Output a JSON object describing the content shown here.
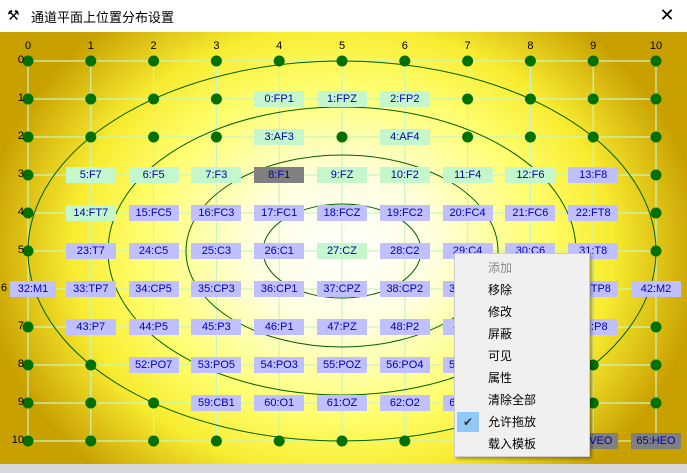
{
  "window": {
    "title": "通道平面上位置分布设置",
    "icon": "hammer-icon",
    "close": "✕"
  },
  "grid": {
    "cols": [
      "0",
      "1",
      "2",
      "3",
      "4",
      "5",
      "6",
      "7",
      "8",
      "9",
      "10"
    ],
    "rows": [
      "0",
      "1",
      "2",
      "3",
      "4",
      "5",
      "6",
      "7",
      "8",
      "9",
      "10"
    ]
  },
  "colors": {
    "green": "#c4f7cc",
    "blue": "#c0c0ff",
    "gray": "#808080",
    "dot": "#007000",
    "line": "#c8f5c0"
  },
  "electrodes": [
    {
      "c": 4,
      "r": 1,
      "t": "0:FP1",
      "k": "green"
    },
    {
      "c": 5,
      "r": 1,
      "t": "1:FPZ",
      "k": "green"
    },
    {
      "c": 6,
      "r": 1,
      "t": "2:FP2",
      "k": "green"
    },
    {
      "c": 4,
      "r": 2,
      "t": "3:AF3",
      "k": "green"
    },
    {
      "c": 6,
      "r": 2,
      "t": "4:AF4",
      "k": "green"
    },
    {
      "c": 1,
      "r": 3,
      "t": "5:F7",
      "k": "green"
    },
    {
      "c": 2,
      "r": 3,
      "t": "6:F5",
      "k": "green"
    },
    {
      "c": 3,
      "r": 3,
      "t": "7:F3",
      "k": "green"
    },
    {
      "c": 4,
      "r": 3,
      "t": "8:F1",
      "k": "gray"
    },
    {
      "c": 5,
      "r": 3,
      "t": "9:FZ",
      "k": "green"
    },
    {
      "c": 6,
      "r": 3,
      "t": "10:F2",
      "k": "green"
    },
    {
      "c": 7,
      "r": 3,
      "t": "11:F4",
      "k": "green"
    },
    {
      "c": 8,
      "r": 3,
      "t": "12:F6",
      "k": "green"
    },
    {
      "c": 9,
      "r": 3,
      "t": "13:F8",
      "k": "blue"
    },
    {
      "c": 1,
      "r": 4,
      "t": "14:FT7",
      "k": "green"
    },
    {
      "c": 2,
      "r": 4,
      "t": "15:FC5",
      "k": "blue"
    },
    {
      "c": 3,
      "r": 4,
      "t": "16:FC3",
      "k": "blue"
    },
    {
      "c": 4,
      "r": 4,
      "t": "17:FC1",
      "k": "blue"
    },
    {
      "c": 5,
      "r": 4,
      "t": "18:FCZ",
      "k": "blue"
    },
    {
      "c": 6,
      "r": 4,
      "t": "19:FC2",
      "k": "blue"
    },
    {
      "c": 7,
      "r": 4,
      "t": "20:FC4",
      "k": "blue"
    },
    {
      "c": 8,
      "r": 4,
      "t": "21:FC6",
      "k": "blue"
    },
    {
      "c": 9,
      "r": 4,
      "t": "22:FT8",
      "k": "blue"
    },
    {
      "c": 1,
      "r": 5,
      "t": "23:T7",
      "k": "blue"
    },
    {
      "c": 2,
      "r": 5,
      "t": "24:C5",
      "k": "blue"
    },
    {
      "c": 3,
      "r": 5,
      "t": "25:C3",
      "k": "blue"
    },
    {
      "c": 4,
      "r": 5,
      "t": "26:C1",
      "k": "blue"
    },
    {
      "c": 5,
      "r": 5,
      "t": "27:CZ",
      "k": "green"
    },
    {
      "c": 6,
      "r": 5,
      "t": "28:C2",
      "k": "blue"
    },
    {
      "c": 7,
      "r": 5,
      "t": "29:C4",
      "k": "blue"
    },
    {
      "c": 8,
      "r": 5,
      "t": "30:C6",
      "k": "blue"
    },
    {
      "c": 9,
      "r": 5,
      "t": "31:T8",
      "k": "blue"
    },
    {
      "c": 0,
      "r": 6,
      "t": "32:M1",
      "k": "blue"
    },
    {
      "c": 1,
      "r": 6,
      "t": "33:TP7",
      "k": "blue"
    },
    {
      "c": 2,
      "r": 6,
      "t": "34:CP5",
      "k": "blue"
    },
    {
      "c": 3,
      "r": 6,
      "t": "35:CP3",
      "k": "blue"
    },
    {
      "c": 4,
      "r": 6,
      "t": "36:CP1",
      "k": "blue"
    },
    {
      "c": 5,
      "r": 6,
      "t": "37:CPZ",
      "k": "blue"
    },
    {
      "c": 6,
      "r": 6,
      "t": "38:CP2",
      "k": "blue"
    },
    {
      "c": 7,
      "r": 6,
      "t": "39:CP4",
      "k": "blue"
    },
    {
      "c": 9,
      "r": 6,
      "t": "41:TP8",
      "k": "blue"
    },
    {
      "c": 10,
      "r": 6,
      "t": "42:M2",
      "k": "blue"
    },
    {
      "c": 1,
      "r": 7,
      "t": "43:P7",
      "k": "blue"
    },
    {
      "c": 2,
      "r": 7,
      "t": "44:P5",
      "k": "blue"
    },
    {
      "c": 3,
      "r": 7,
      "t": "45:P3",
      "k": "blue"
    },
    {
      "c": 4,
      "r": 7,
      "t": "46:P1",
      "k": "blue"
    },
    {
      "c": 5,
      "r": 7,
      "t": "47:PZ",
      "k": "blue"
    },
    {
      "c": 6,
      "r": 7,
      "t": "48:P2",
      "k": "blue"
    },
    {
      "c": 7,
      "r": 7,
      "t": "49:P4",
      "k": "blue"
    },
    {
      "c": 9,
      "r": 7,
      "t": "51:P8",
      "k": "blue"
    },
    {
      "c": 2,
      "r": 8,
      "t": "52:PO7",
      "k": "blue"
    },
    {
      "c": 3,
      "r": 8,
      "t": "53:PO5",
      "k": "blue"
    },
    {
      "c": 4,
      "r": 8,
      "t": "54:PO3",
      "k": "blue"
    },
    {
      "c": 5,
      "r": 8,
      "t": "55:POZ",
      "k": "blue"
    },
    {
      "c": 6,
      "r": 8,
      "t": "56:PO4",
      "k": "blue"
    },
    {
      "c": 7,
      "r": 8,
      "t": "57:PO6",
      "k": "blue"
    },
    {
      "c": 3,
      "r": 9,
      "t": "59:CB1",
      "k": "blue"
    },
    {
      "c": 4,
      "r": 9,
      "t": "60:O1",
      "k": "blue"
    },
    {
      "c": 5,
      "r": 9,
      "t": "61:OZ",
      "k": "blue"
    },
    {
      "c": 6,
      "r": 9,
      "t": "62:O2",
      "k": "blue"
    },
    {
      "c": 7,
      "r": 9,
      "t": "63:CB2",
      "k": "blue"
    },
    {
      "c": 9,
      "r": 10,
      "t": "64:VEO",
      "k": "gray"
    },
    {
      "c": 10,
      "r": 10,
      "t": "65:HEO",
      "k": "gray"
    }
  ],
  "context_menu": {
    "items": [
      {
        "label": "添加",
        "disabled": true
      },
      {
        "label": "移除"
      },
      {
        "label": "修改"
      },
      {
        "label": "屏蔽"
      },
      {
        "label": "可见"
      },
      {
        "label": "属性"
      },
      {
        "label": "清除全部"
      },
      {
        "label": "允许拖放",
        "checked": true
      },
      {
        "label": "载入模板"
      }
    ],
    "check_glyph": "✔"
  }
}
